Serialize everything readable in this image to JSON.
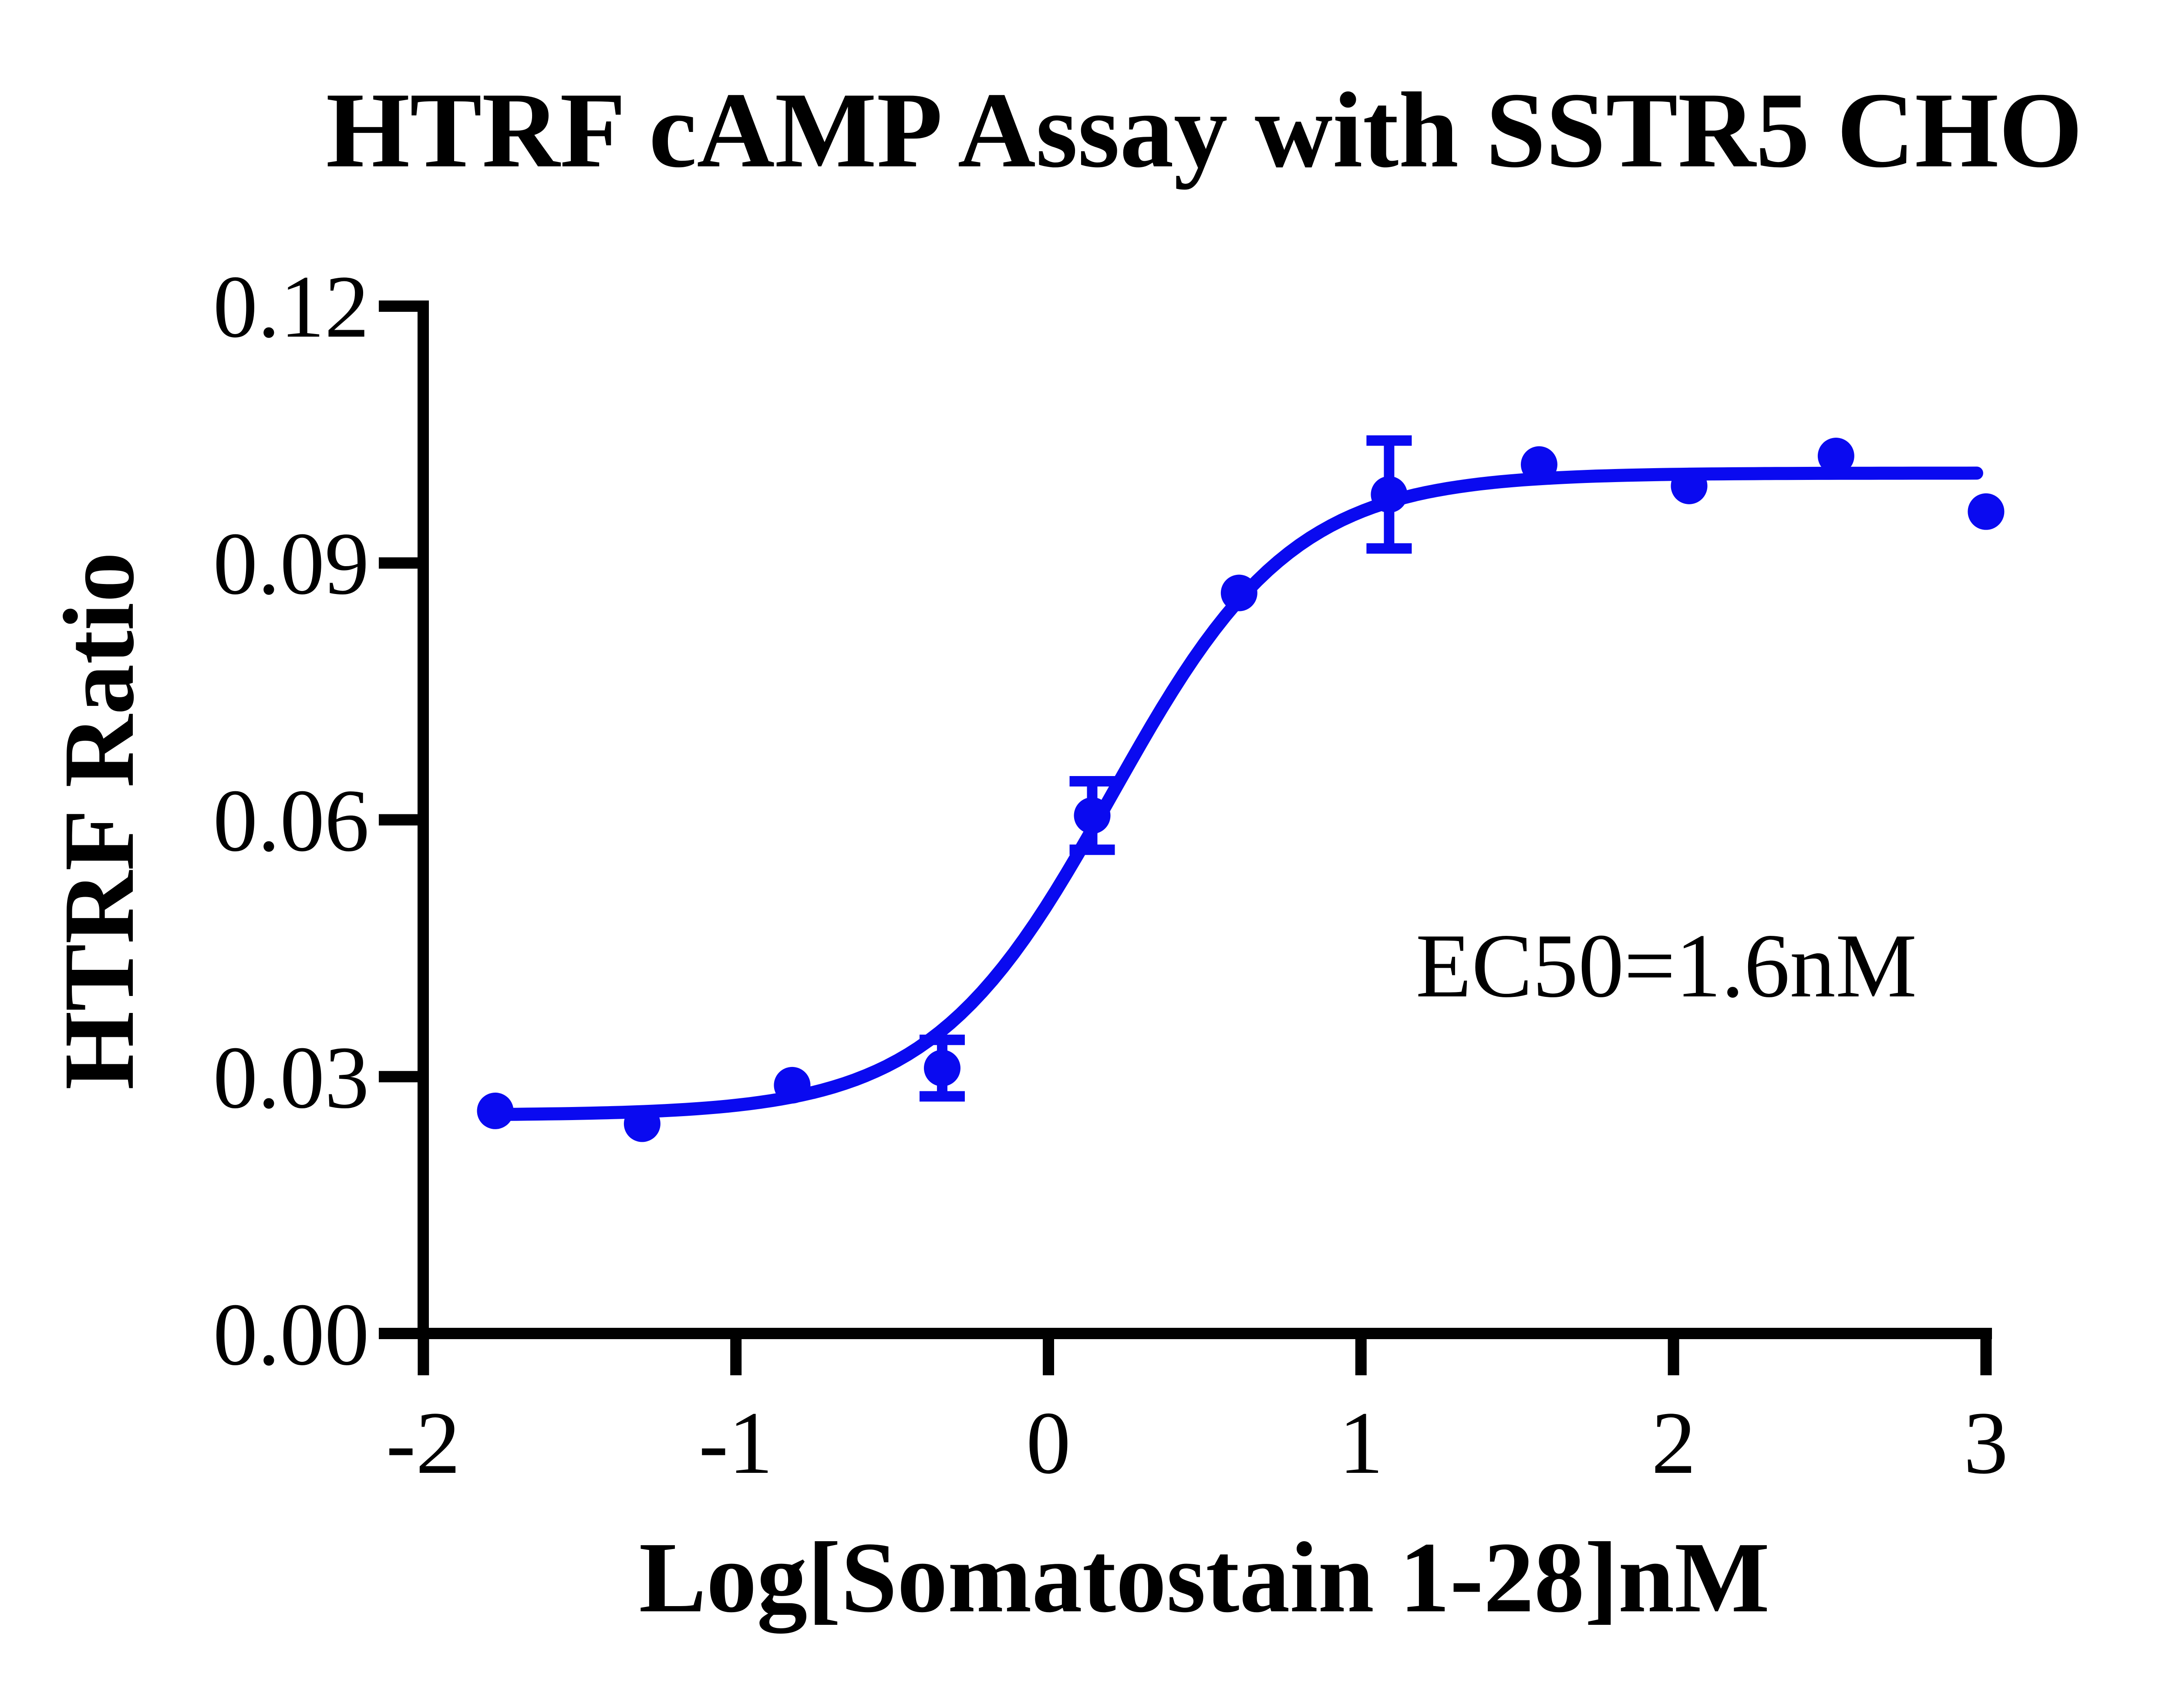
{
  "title": "HTRF cAMP Assay with SSTR5 CHO",
  "colors": {
    "series_blue": "#0a0af0",
    "axis_black": "#000000",
    "background": "#ffffff"
  },
  "annotation_text": "EC50=1.6nM",
  "chart_data": {
    "type": "scatter",
    "title": "HTRF cAMP Assay with SSTR5 CHO",
    "xlabel": "Log[Somatostain 1-28]nM",
    "ylabel": "HTRF Ratio",
    "xlim": [
      -2,
      3
    ],
    "ylim": [
      0,
      0.12
    ],
    "grid": false,
    "legend": null,
    "x_ticks": [
      -2,
      -1,
      0,
      1,
      2,
      3
    ],
    "x_tick_labels": [
      "-2",
      "-1",
      "0",
      "1",
      "2",
      "3"
    ],
    "y_ticks": [
      0,
      0.03,
      0.06,
      0.09,
      0.12
    ],
    "y_tick_labels": [
      "0.00",
      "0.03",
      "0.06",
      "0.09",
      "0.12"
    ],
    "series": [
      {
        "name": "Somatostain 1-28",
        "color": "#0a0af0",
        "marker": "circle",
        "x": [
          -1.77,
          -1.3,
          -0.82,
          -0.34,
          0.14,
          0.61,
          1.09,
          1.57,
          2.05,
          2.52,
          3.0
        ],
        "y": [
          0.026,
          0.0245,
          0.029,
          0.031,
          0.0605,
          0.0865,
          0.098,
          0.1015,
          0.099,
          0.1025,
          0.096
        ],
        "yerr": [
          0,
          0,
          0,
          0.0033,
          0.004,
          0,
          0.0063,
          0,
          0,
          0,
          0
        ]
      }
    ],
    "fit_curve": {
      "model": "4PL sigmoid",
      "bottom": 0.0255,
      "top": 0.1005,
      "logEC50": 0.204,
      "hill": 1.5,
      "x_range": [
        -1.77,
        2.97
      ]
    },
    "annotation": {
      "text": "EC50=1.6nM",
      "ec50_nM": 1.6
    }
  }
}
